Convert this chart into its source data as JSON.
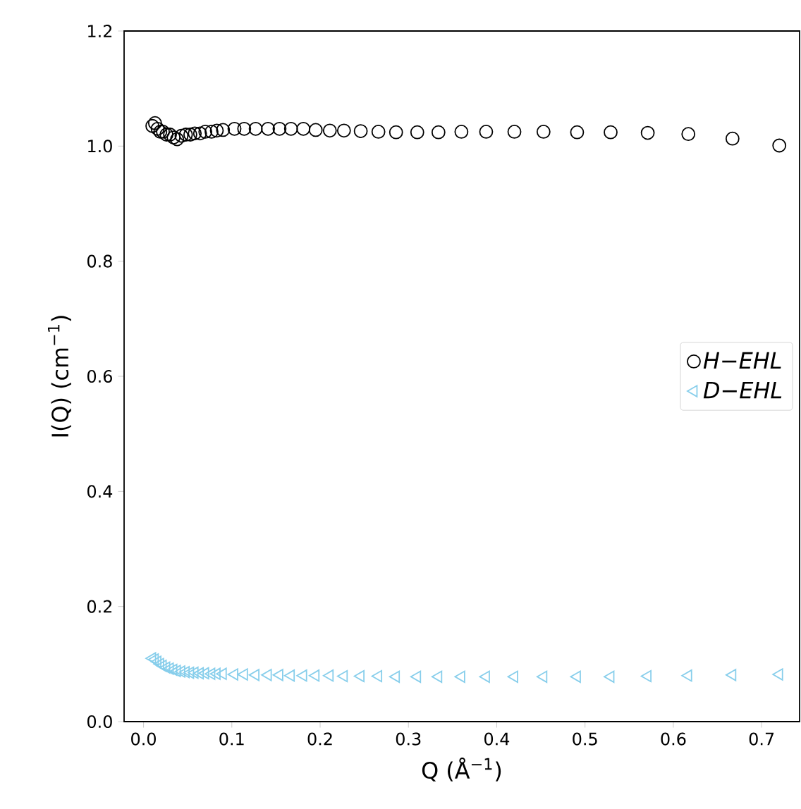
{
  "chart_data": {
    "type": "scatter",
    "xlabel": "Q (Å$^{−1}$)",
    "ylabel": "I(Q) (cm$^{−1}$)",
    "x": [
      0.01,
      0.013,
      0.016,
      0.019,
      0.022,
      0.026,
      0.03,
      0.034,
      0.038,
      0.043,
      0.048,
      0.053,
      0.058,
      0.064,
      0.07,
      0.077,
      0.083,
      0.09,
      0.103,
      0.114,
      0.127,
      0.141,
      0.154,
      0.167,
      0.181,
      0.195,
      0.211,
      0.227,
      0.246,
      0.266,
      0.286,
      0.31,
      0.334,
      0.36,
      0.388,
      0.42,
      0.453,
      0.491,
      0.529,
      0.571,
      0.617,
      0.667,
      0.72
    ],
    "series": [
      {
        "name": "H−EHL",
        "color": "#000000",
        "marker": "circle",
        "values": [
          1.035,
          1.04,
          1.03,
          1.025,
          1.025,
          1.02,
          1.02,
          1.015,
          1.012,
          1.018,
          1.02,
          1.02,
          1.022,
          1.022,
          1.025,
          1.025,
          1.027,
          1.028,
          1.03,
          1.03,
          1.03,
          1.03,
          1.03,
          1.03,
          1.03,
          1.028,
          1.027,
          1.027,
          1.026,
          1.025,
          1.024,
          1.024,
          1.024,
          1.025,
          1.025,
          1.025,
          1.025,
          1.024,
          1.024,
          1.023,
          1.021,
          1.013,
          1.001
        ]
      },
      {
        "name": "D−EHL",
        "color": "#87ceeb",
        "marker": "triangle",
        "values": [
          0.11,
          0.108,
          0.104,
          0.1,
          0.097,
          0.094,
          0.092,
          0.09,
          0.088,
          0.087,
          0.086,
          0.085,
          0.085,
          0.084,
          0.084,
          0.083,
          0.083,
          0.083,
          0.082,
          0.082,
          0.081,
          0.081,
          0.081,
          0.08,
          0.08,
          0.08,
          0.08,
          0.079,
          0.079,
          0.079,
          0.078,
          0.078,
          0.078,
          0.078,
          0.078,
          0.078,
          0.078,
          0.078,
          0.078,
          0.079,
          0.08,
          0.081,
          0.082
        ]
      }
    ],
    "xlim": [
      -0.022,
      0.743
    ],
    "ylim": [
      0,
      1.2
    ],
    "xticks": [
      {
        "value": 0,
        "label": "0.0"
      },
      0.1,
      0.2,
      0.3,
      0.4,
      0.5,
      0.6,
      0.7
    ],
    "yticks": [
      {
        "value": 0,
        "label": "0.0"
      },
      0.2,
      0.4,
      0.6,
      0.8,
      {
        "value": 1,
        "label": "1.0"
      },
      1.2
    ],
    "legend": "right"
  }
}
